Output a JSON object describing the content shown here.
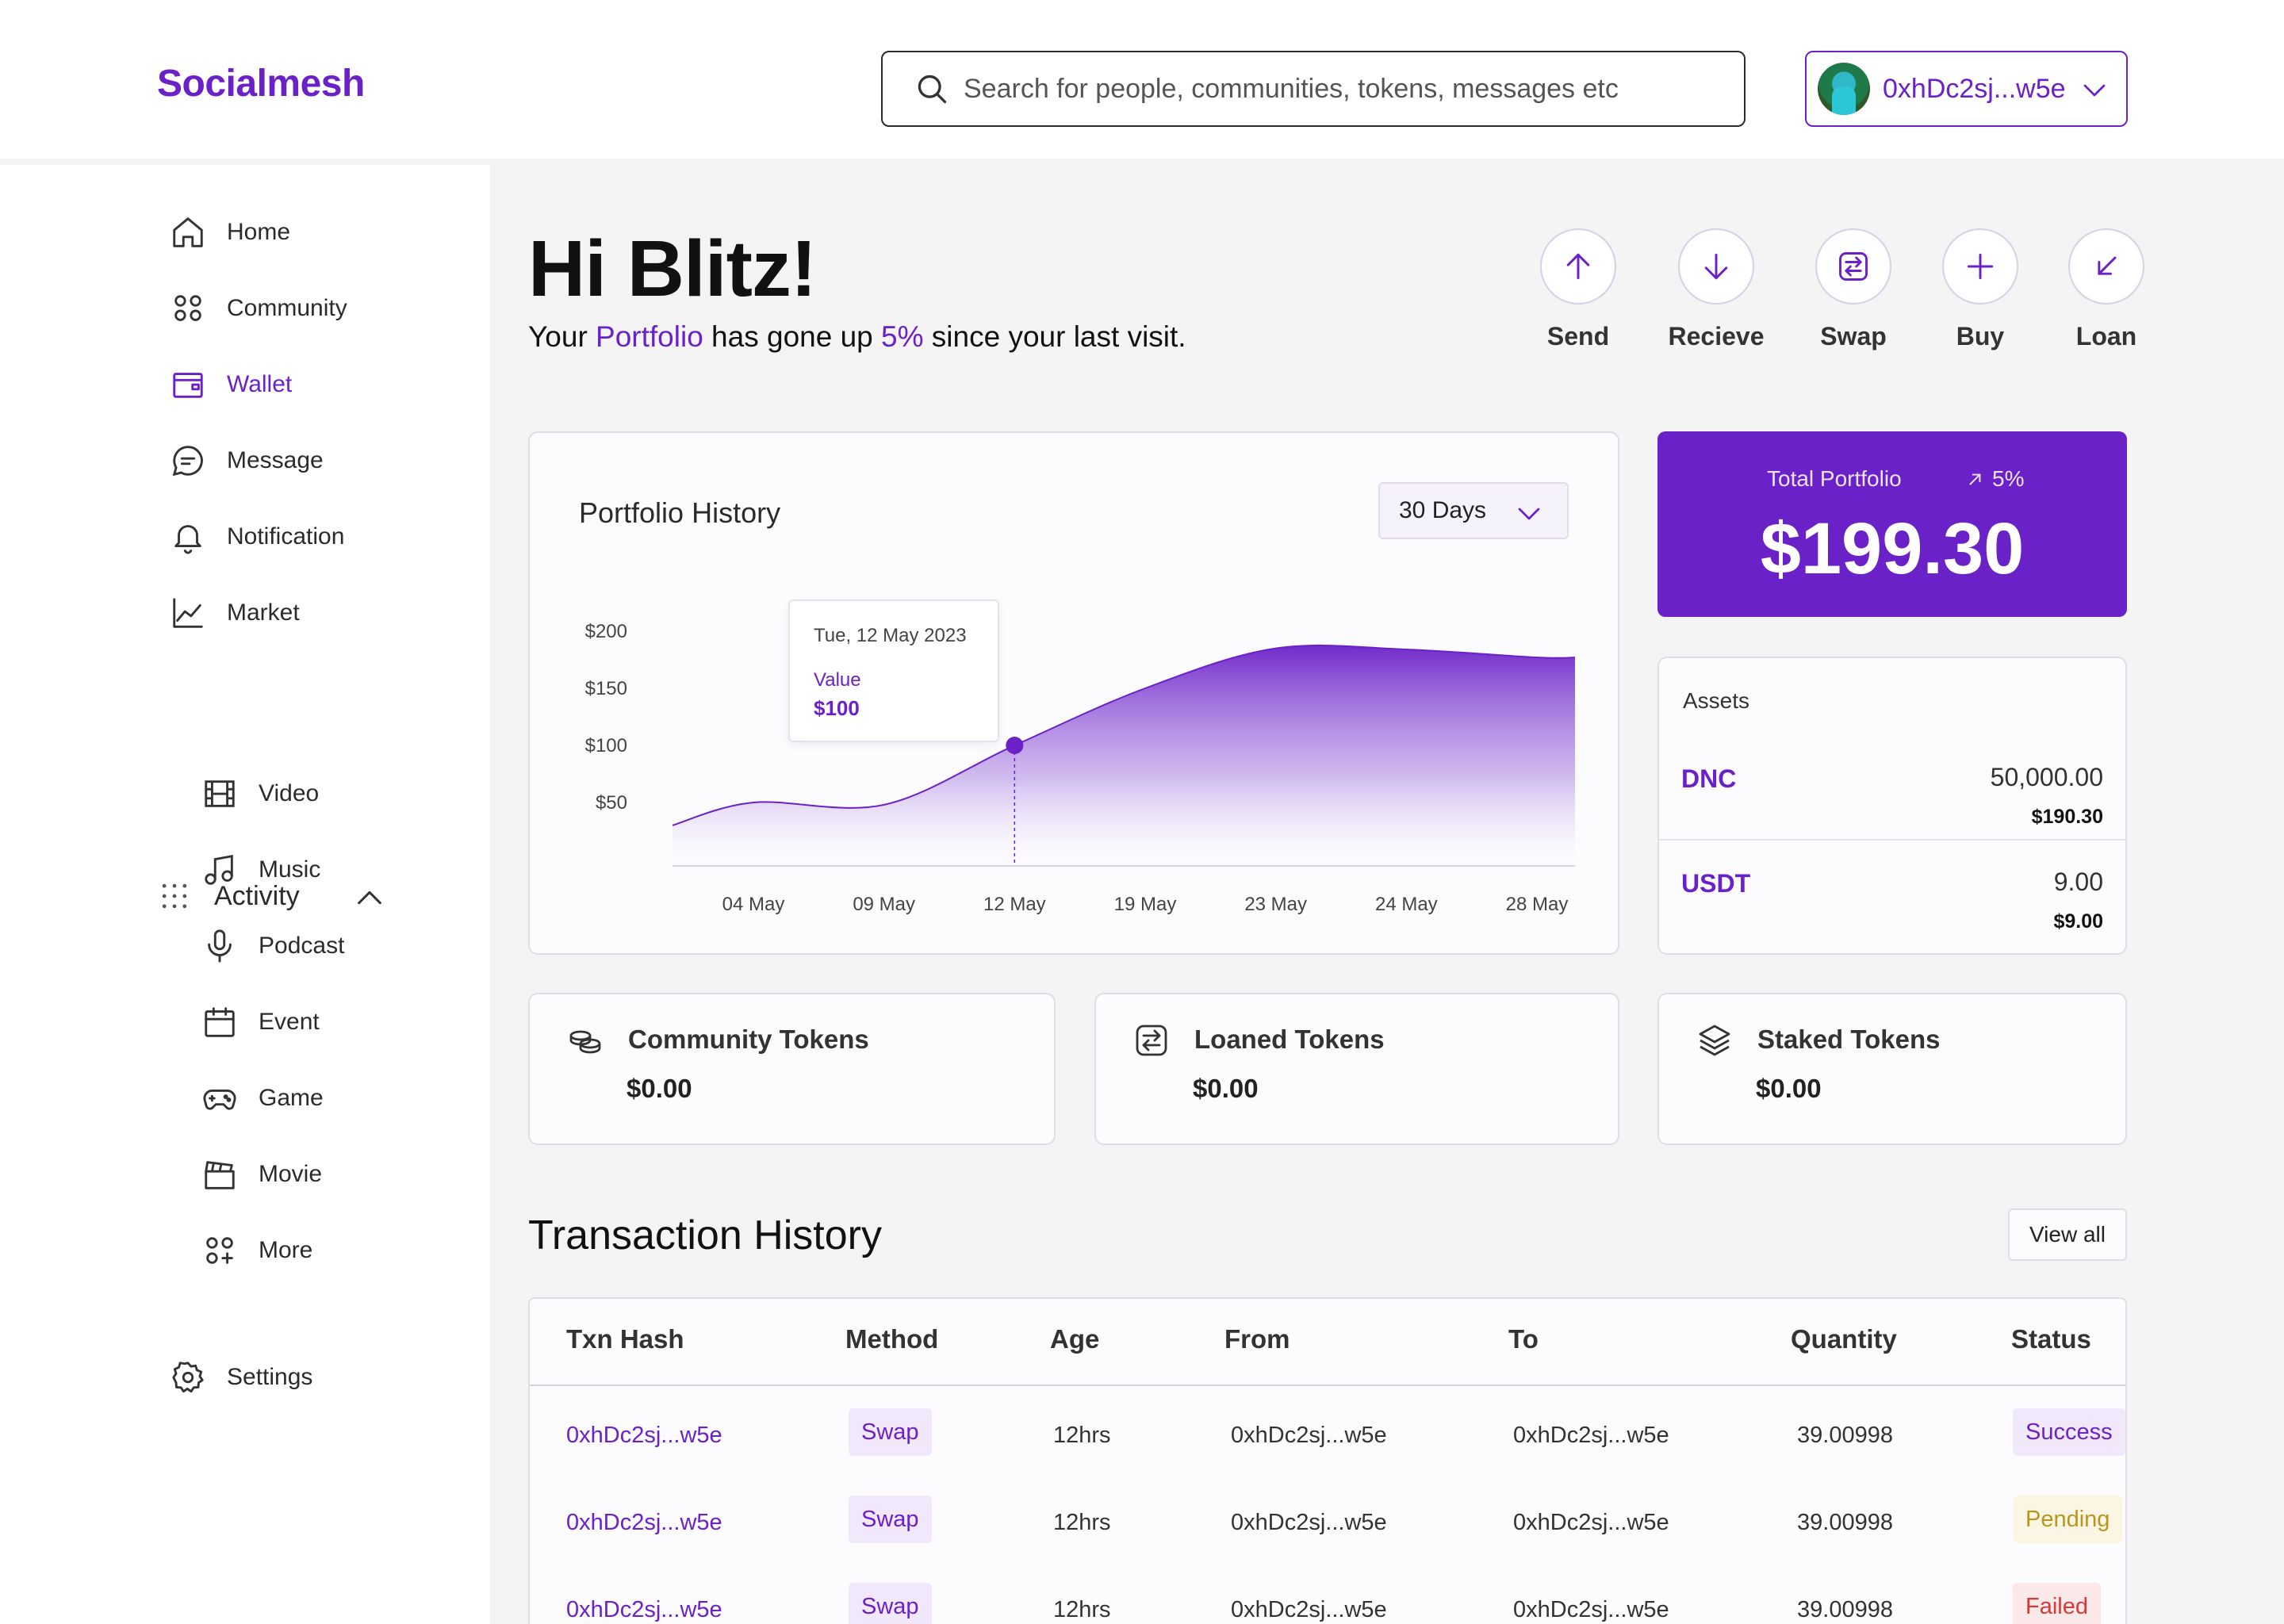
{
  "brand": {
    "name": "Socialmesh",
    "accent": "#6b21c8"
  },
  "search": {
    "placeholder": "Search for people, communities, tokens, messages etc"
  },
  "account": {
    "address": "0xhDc2sj...w5e"
  },
  "sidebar": {
    "items": [
      {
        "label": "Home",
        "icon": "home-icon"
      },
      {
        "label": "Community",
        "icon": "community-icon"
      },
      {
        "label": "Wallet",
        "icon": "wallet-icon",
        "active": true
      },
      {
        "label": "Message",
        "icon": "message-icon"
      },
      {
        "label": "Notification",
        "icon": "bell-icon"
      },
      {
        "label": "Market",
        "icon": "chart-line-icon"
      }
    ],
    "activity": {
      "label": "Activity",
      "items": [
        {
          "label": "Video",
          "icon": "film-icon"
        },
        {
          "label": "Music",
          "icon": "music-icon"
        },
        {
          "label": "Podcast",
          "icon": "microphone-icon"
        },
        {
          "label": "Event",
          "icon": "calendar-icon"
        },
        {
          "label": "Game",
          "icon": "gamepad-icon"
        },
        {
          "label": "Movie",
          "icon": "clapperboard-icon"
        },
        {
          "label": "More",
          "icon": "more-apps-icon"
        }
      ]
    },
    "settings": {
      "label": "Settings",
      "icon": "gear-icon"
    }
  },
  "greeting": {
    "title": "Hi Blitz!",
    "sub_prefix": "Your ",
    "sub_portfolio": "Portfolio",
    "sub_middle": " has gone up ",
    "sub_pct": "5%",
    "sub_suffix": " since your last visit."
  },
  "actions": [
    {
      "label": "Send",
      "icon": "arrow-up-icon"
    },
    {
      "label": "Recieve",
      "icon": "arrow-down-icon"
    },
    {
      "label": "Swap",
      "icon": "swap-icon"
    },
    {
      "label": "Buy",
      "icon": "plus-icon"
    },
    {
      "label": "Loan",
      "icon": "arrow-down-left-icon"
    }
  ],
  "portfolio_history": {
    "title": "Portfolio History",
    "range": "30 Days",
    "tooltip": {
      "date": "Tue, 12 May 2023",
      "label": "Value",
      "value": "$100"
    }
  },
  "chart_data": {
    "type": "area",
    "title": "Portfolio History",
    "categories": [
      "04 May",
      "09 May",
      "12 May",
      "19 May",
      "23 May",
      "24 May",
      "28 May"
    ],
    "y_ticks": [
      "$200",
      "$150",
      "$100",
      "$50"
    ],
    "ylim": [
      0,
      200
    ],
    "series": [
      {
        "values": [
          50,
          48,
          100,
          150,
          185,
          184,
          177
        ]
      }
    ],
    "highlight": {
      "category": "12 May",
      "value": 100
    },
    "grid": false,
    "color": "#6b21c8"
  },
  "total_portfolio": {
    "label": "Total Portfolio",
    "change": "5%",
    "value": "$199.30"
  },
  "assets": {
    "title": "Assets",
    "items": [
      {
        "symbol": "DNC",
        "quantity": "50,000.00",
        "usd": "$190.30"
      },
      {
        "symbol": "USDT",
        "quantity": "9.00",
        "usd": "$9.00"
      }
    ]
  },
  "tokens": [
    {
      "name": "Community Tokens",
      "value": "$0.00",
      "icon": "coins-icon"
    },
    {
      "name": "Loaned Tokens",
      "value": "$0.00",
      "icon": "swap-icon"
    },
    {
      "name": "Staked Tokens",
      "value": "$0.00",
      "icon": "layers-icon"
    }
  ],
  "transactions": {
    "title": "Transaction History",
    "view_all": "View all",
    "columns": [
      "Txn Hash",
      "Method",
      "Age",
      "From",
      "To",
      "Quantity",
      "Status"
    ],
    "rows": [
      {
        "hash": "0xhDc2sj...w5e",
        "method": "Swap",
        "age": "12hrs",
        "from": "0xhDc2sj...w5e",
        "to": "0xhDc2sj...w5e",
        "quantity": "39.00998",
        "status": "Success"
      },
      {
        "hash": "0xhDc2sj...w5e",
        "method": "Swap",
        "age": "12hrs",
        "from": "0xhDc2sj...w5e",
        "to": "0xhDc2sj...w5e",
        "quantity": "39.00998",
        "status": "Pending"
      },
      {
        "hash": "0xhDc2sj...w5e",
        "method": "Swap",
        "age": "12hrs",
        "from": "0xhDc2sj...w5e",
        "to": "0xhDc2sj...w5e",
        "quantity": "39.00998",
        "status": "Failed"
      }
    ]
  }
}
